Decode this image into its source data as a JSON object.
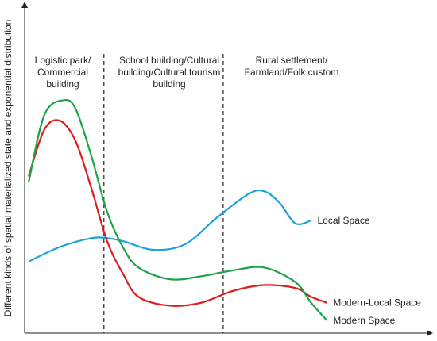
{
  "chart_data": {
    "type": "line",
    "title": "",
    "xlabel": "",
    "ylabel": "Different kinds of spatial materialized state and exponential distribution",
    "grid": false,
    "legend": "none",
    "xlim": [
      0,
      10
    ],
    "ylim": [
      0,
      10
    ],
    "regions": [
      {
        "lines": [
          "Logistic park/",
          "Commercial",
          "building"
        ]
      },
      {
        "lines": [
          "School building/Cultural",
          "building/Cultural tourism",
          "building"
        ]
      },
      {
        "lines": [
          "Rural settlement/",
          "Farmland/Folk custom"
        ]
      }
    ],
    "dividers_x": [
      2.4,
      6.2
    ],
    "series": [
      {
        "name": "Local Space",
        "color": "#1aa3d9",
        "points": [
          [
            0,
            2.3
          ],
          [
            1,
            2.8
          ],
          [
            2,
            3.1
          ],
          [
            2.5,
            3.1
          ],
          [
            3,
            3.0
          ],
          [
            4,
            2.7
          ],
          [
            5,
            2.9
          ],
          [
            6,
            3.8
          ],
          [
            7,
            4.6
          ],
          [
            7.5,
            4.7
          ],
          [
            8,
            4.3
          ],
          [
            8.5,
            3.6
          ],
          [
            9,
            3.7
          ]
        ]
      },
      {
        "name": "Modern-Local Space",
        "color": "#e01b1b",
        "points": [
          [
            0,
            5.2
          ],
          [
            0.5,
            6.8
          ],
          [
            1,
            7.1
          ],
          [
            1.5,
            6.4
          ],
          [
            2,
            4.8
          ],
          [
            2.5,
            3.0
          ],
          [
            3,
            1.9
          ],
          [
            3.5,
            1.1
          ],
          [
            4.5,
            0.8
          ],
          [
            5.5,
            0.9
          ],
          [
            6.5,
            1.3
          ],
          [
            7.5,
            1.5
          ],
          [
            8.5,
            1.4
          ],
          [
            9,
            1.1
          ],
          [
            9.5,
            0.9
          ]
        ]
      },
      {
        "name": "Modern Space",
        "color": "#1ea34a",
        "points": [
          [
            0,
            5.0
          ],
          [
            0.5,
            7.3
          ],
          [
            1.1,
            7.8
          ],
          [
            1.5,
            7.5
          ],
          [
            2,
            5.9
          ],
          [
            2.5,
            4.0
          ],
          [
            3,
            2.8
          ],
          [
            3.5,
            2.1
          ],
          [
            4.5,
            1.7
          ],
          [
            5.5,
            1.8
          ],
          [
            6.5,
            2.0
          ],
          [
            7.5,
            2.1
          ],
          [
            8.5,
            1.6
          ],
          [
            9,
            0.9
          ],
          [
            9.5,
            0.3
          ]
        ]
      }
    ]
  }
}
